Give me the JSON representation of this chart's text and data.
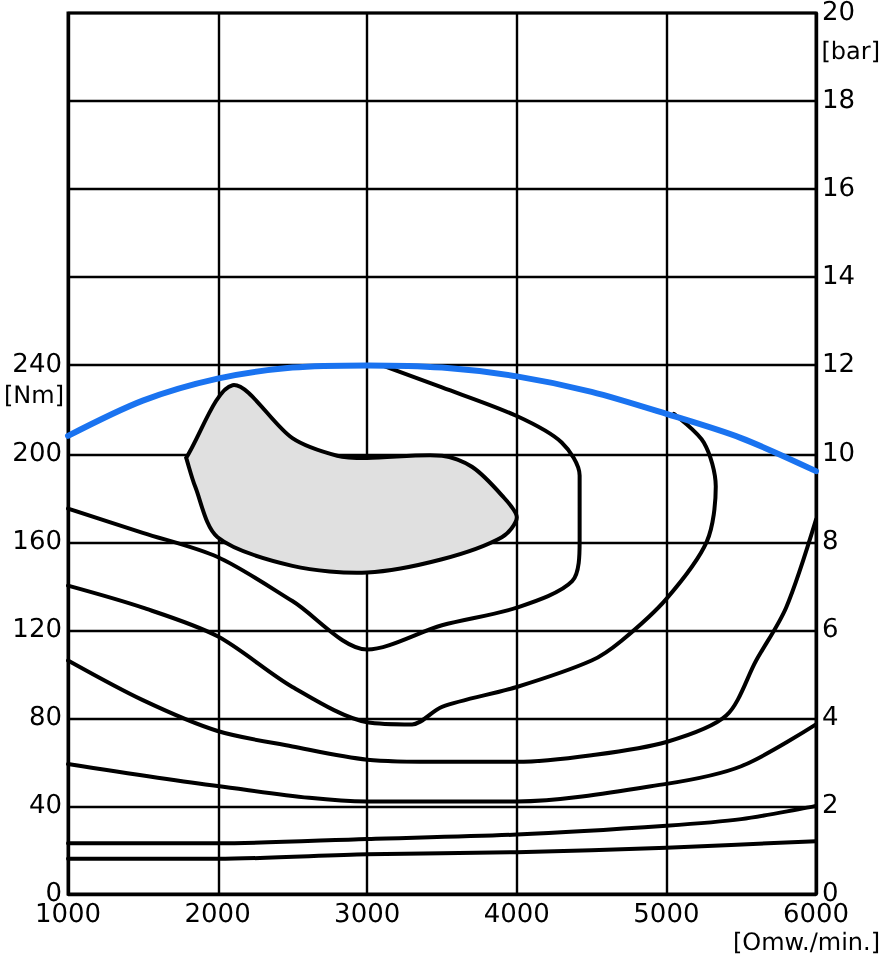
{
  "chart_data": {
    "type": "line",
    "xlabel": "[Omw./min.]",
    "ylabel": "[Nm]",
    "y2label": "[bar]",
    "xlim": [
      1000,
      6000
    ],
    "xticks": [
      1000,
      2000,
      3000,
      4000,
      5000,
      6000
    ],
    "ylim": [
      0,
      400
    ],
    "yticks": [
      0,
      40,
      80,
      120,
      160,
      200,
      240
    ],
    "y2lim": [
      0,
      20
    ],
    "y2ticks": [
      0,
      2,
      4,
      6,
      8,
      10,
      12,
      14,
      16,
      18,
      20
    ],
    "grid": true,
    "marker": "none",
    "series": [
      {
        "type": "area",
        "color": "#e0e0e0",
        "x": [
          1790,
          2100,
          2500,
          2800,
          3000,
          3500,
          3700,
          3900,
          4000,
          3900,
          3500,
          3000,
          2500,
          2000,
          1850,
          1790
        ],
        "values": [
          198,
          231,
          207,
          199,
          198,
          199,
          194,
          181,
          171,
          162,
          152,
          146,
          149,
          162,
          185,
          198
        ]
      },
      {
        "color": "#000000",
        "x": [
          1000,
          1500,
          2000,
          2500,
          3000,
          3500,
          4000,
          4370,
          4420,
          4420,
          4300,
          4000,
          3500,
          3100
        ],
        "values": [
          175,
          164,
          153,
          133,
          111,
          122,
          130,
          142,
          160,
          190,
          205,
          217,
          230,
          240
        ]
      },
      {
        "color": "#000000",
        "x": [
          1000,
          1500,
          2000,
          2500,
          3000,
          3300,
          3500,
          4000,
          4500,
          4700,
          5000,
          5270,
          5330,
          5250,
          5050
        ],
        "values": [
          140,
          130,
          117,
          94,
          78,
          77,
          85,
          94,
          106,
          115,
          134,
          160,
          185,
          205,
          218
        ]
      },
      {
        "color": "#000000",
        "x": [
          1000,
          1500,
          2000,
          2500,
          3000,
          3500,
          4000,
          4500,
          5000,
          5400,
          5600,
          5800,
          6000
        ],
        "values": [
          106,
          88,
          74,
          67,
          61,
          60,
          60,
          63,
          69,
          81,
          106,
          130,
          170
        ]
      },
      {
        "color": "#000000",
        "x": [
          1000,
          2000,
          3000,
          4000,
          5000,
          5500,
          6000
        ],
        "values": [
          59,
          49,
          42,
          42,
          50,
          58,
          77
        ]
      },
      {
        "color": "#000000",
        "x": [
          1000,
          2000,
          3000,
          4000,
          5000,
          5500,
          6000
        ],
        "values": [
          23,
          23,
          25,
          27,
          31,
          34,
          40
        ]
      },
      {
        "color": "#000000",
        "x": [
          1000,
          2000,
          3000,
          4000,
          5000,
          6000
        ],
        "values": [
          16,
          16,
          18,
          19,
          21,
          24
        ]
      },
      {
        "color": "#1a73f0",
        "x": [
          1000,
          1500,
          2000,
          2500,
          3000,
          3500,
          4000,
          4500,
          5000,
          5500,
          6000
        ],
        "values": [
          208,
          224,
          234,
          239,
          240,
          239,
          235,
          228,
          218,
          207,
          192
        ]
      }
    ]
  }
}
